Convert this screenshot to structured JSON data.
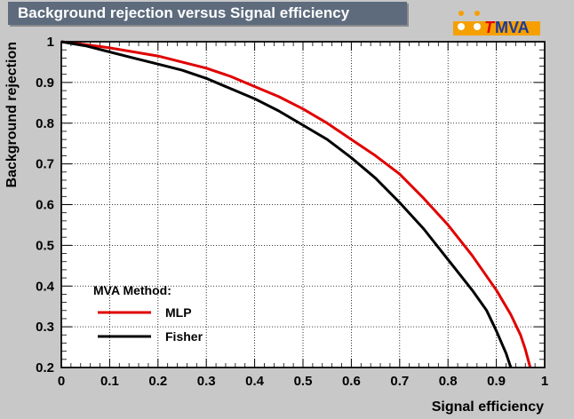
{
  "header": {
    "title": "Background rejection versus Signal efficiency",
    "logo_text": "MVA",
    "logo_prefix": "T",
    "logo_accent_color": "#f5a000"
  },
  "colors": {
    "background": "#c8c8c8",
    "title_bar": "#5d6b7d",
    "plot_bg": "#ffffff",
    "mlp": "#e00000",
    "fisher": "#000000"
  },
  "chart_data": {
    "type": "line",
    "title": "Background rejection versus Signal efficiency",
    "xlabel": "Signal efficiency",
    "ylabel": "Background rejection",
    "xlim": [
      0,
      1
    ],
    "ylim": [
      0.2,
      1
    ],
    "xticks": [
      "0",
      "0.1",
      "0.2",
      "0.3",
      "0.4",
      "0.5",
      "0.6",
      "0.7",
      "0.8",
      "0.9",
      "1"
    ],
    "yticks": [
      "0.2",
      "0.3",
      "0.4",
      "0.5",
      "0.6",
      "0.7",
      "0.8",
      "0.9",
      "1"
    ],
    "grid": true,
    "legend": {
      "title": "MVA Method:",
      "placement": "bottom-left",
      "entries": [
        "MLP",
        "Fisher"
      ]
    },
    "series": [
      {
        "name": "MLP",
        "color": "#e00000",
        "x": [
          0,
          0.05,
          0.1,
          0.15,
          0.2,
          0.25,
          0.3,
          0.35,
          0.4,
          0.45,
          0.5,
          0.55,
          0.6,
          0.65,
          0.7,
          0.75,
          0.8,
          0.85,
          0.9,
          0.93,
          0.95,
          0.96,
          0.97
        ],
        "y": [
          1.0,
          0.993,
          0.985,
          0.975,
          0.965,
          0.95,
          0.935,
          0.915,
          0.89,
          0.865,
          0.835,
          0.8,
          0.76,
          0.72,
          0.675,
          0.615,
          0.55,
          0.475,
          0.39,
          0.33,
          0.28,
          0.245,
          0.2
        ]
      },
      {
        "name": "Fisher",
        "color": "#000000",
        "x": [
          0,
          0.05,
          0.1,
          0.15,
          0.2,
          0.25,
          0.3,
          0.35,
          0.4,
          0.45,
          0.5,
          0.55,
          0.6,
          0.65,
          0.7,
          0.75,
          0.8,
          0.85,
          0.88,
          0.9,
          0.92,
          0.93
        ],
        "y": [
          1.0,
          0.99,
          0.975,
          0.96,
          0.945,
          0.93,
          0.91,
          0.885,
          0.86,
          0.83,
          0.795,
          0.76,
          0.715,
          0.665,
          0.605,
          0.54,
          0.465,
          0.39,
          0.34,
          0.29,
          0.235,
          0.2
        ]
      }
    ]
  }
}
